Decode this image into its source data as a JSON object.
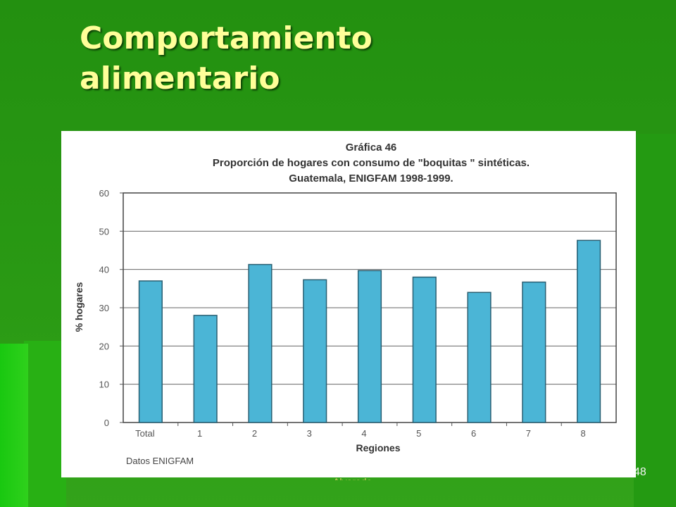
{
  "slide": {
    "title_line1": "Comportamiento",
    "title_line2": "alimentario",
    "page_number": "48",
    "footer": "Alvarado"
  },
  "colors": {
    "background": "#2a9a14",
    "title": "#ffff99",
    "bar": "#4bb5d6",
    "bar_stroke": "#2a5f72"
  },
  "chart_data": {
    "type": "bar",
    "title_lines": [
      "Gráfica 46",
      "Proporción de hogares con consumo de \"boquitas \" sintéticas.",
      "Guatemala, ENIGFAM 1998-1999."
    ],
    "categories": [
      "Total",
      "1",
      "2",
      "3",
      "4",
      "5",
      "6",
      "7",
      "8"
    ],
    "values": [
      37,
      28,
      41.3,
      37.3,
      39.7,
      38,
      34,
      36.7,
      47.6
    ],
    "xlabel": "Regiones",
    "ylabel": "% hogares",
    "ylim": [
      0,
      60
    ],
    "yticks": [
      0,
      10,
      20,
      30,
      40,
      50,
      60
    ],
    "grid": true,
    "source_note": "Datos ENIGFAM"
  }
}
